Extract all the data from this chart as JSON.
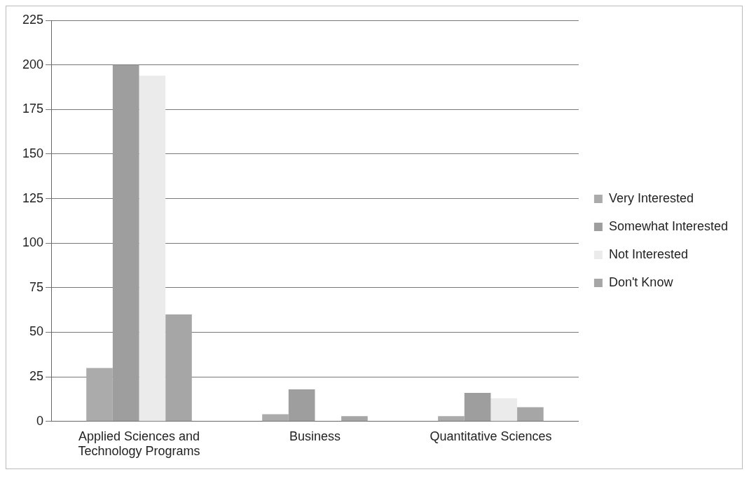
{
  "chart_data": {
    "type": "bar",
    "categories": [
      "Applied Sciences and Technology Programs",
      "Business",
      "Quantitative Sciences"
    ],
    "series": [
      {
        "name": "Very Interested",
        "color": "#ababab",
        "values": [
          30,
          4,
          3
        ]
      },
      {
        "name": "Somewhat Interested",
        "color": "#9e9e9e",
        "values": [
          200,
          18,
          16
        ]
      },
      {
        "name": "Not Interested",
        "color": "#ebebeb",
        "values": [
          194,
          0,
          13
        ]
      },
      {
        "name": "Don't Know",
        "color": "#a6a6a6",
        "values": [
          60,
          3,
          8
        ]
      }
    ],
    "ylim": [
      0,
      225
    ],
    "yticks": [
      0,
      25,
      50,
      75,
      100,
      125,
      150,
      175,
      200,
      225
    ],
    "grid": "y",
    "legend": "right"
  }
}
